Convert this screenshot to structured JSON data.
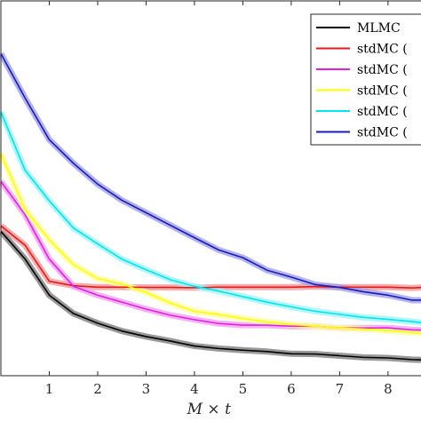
{
  "chart_data": {
    "type": "line",
    "title": "",
    "xlabel": "M × t",
    "ylabel": "",
    "xlim": [
      0,
      8.7
    ],
    "x_ticks": [
      "1",
      "2",
      "3",
      "4",
      "5",
      "6",
      "7",
      "8"
    ],
    "grid": false,
    "legend_placement": "top-right",
    "x": [
      0,
      0.5,
      1,
      1.5,
      2,
      2.5,
      3,
      3.5,
      4,
      4.5,
      5,
      5.5,
      6,
      6.5,
      7,
      7.5,
      8,
      8.5,
      8.7
    ],
    "series": [
      {
        "name": "MLMC",
        "color": "#000000",
        "band_color": "#808080",
        "values": [
          0.72,
          0.62,
          0.49,
          0.424,
          0.389,
          0.361,
          0.341,
          0.325,
          0.307,
          0.298,
          0.292,
          0.287,
          0.279,
          0.278,
          0.272,
          0.266,
          0.264,
          0.258,
          0.257
        ]
      },
      {
        "name": "stdMC (",
        "color": "#e41a1c",
        "band_color": "#f29a9a",
        "values": [
          0.74,
          0.67,
          0.54,
          0.524,
          0.519,
          0.519,
          0.518,
          0.518,
          0.517,
          0.519,
          0.519,
          0.519,
          0.519,
          0.521,
          0.519,
          0.519,
          0.519,
          0.516,
          0.518
        ]
      },
      {
        "name": "stdMC (",
        "color": "#e020e0",
        "band_color": "#f2a0f2",
        "values": [
          0.9,
          0.78,
          0.62,
          0.522,
          0.49,
          0.465,
          0.44,
          0.418,
          0.402,
          0.388,
          0.382,
          0.382,
          0.378,
          0.378,
          0.372,
          0.372,
          0.372,
          0.365,
          0.364
        ]
      },
      {
        "name": "stdMC (",
        "color": "#ffff00",
        "band_color": "#ffffa0",
        "values": [
          1.0,
          0.8,
          0.69,
          0.6,
          0.55,
          0.53,
          0.5,
          0.462,
          0.432,
          0.42,
          0.406,
          0.394,
          0.384,
          0.378,
          0.372,
          0.368,
          0.362,
          0.356,
          0.352
        ]
      },
      {
        "name": "stdMC (",
        "color": "#00e5ee",
        "band_color": "#a0f4f8",
        "values": [
          1.15,
          0.94,
          0.83,
          0.732,
          0.675,
          0.62,
          0.582,
          0.546,
          0.522,
          0.505,
          0.485,
          0.465,
          0.448,
          0.432,
          0.421,
          0.41,
          0.403,
          0.395,
          0.391
        ]
      },
      {
        "name": "stdMC (",
        "color": "#1a1ab8",
        "band_color": "#a0a0e8",
        "values": [
          1.36,
          1.2,
          1.05,
          0.965,
          0.89,
          0.832,
          0.787,
          0.742,
          0.697,
          0.653,
          0.625,
          0.58,
          0.555,
          0.528,
          0.518,
          0.502,
          0.49,
          0.472,
          0.472
        ]
      }
    ]
  }
}
